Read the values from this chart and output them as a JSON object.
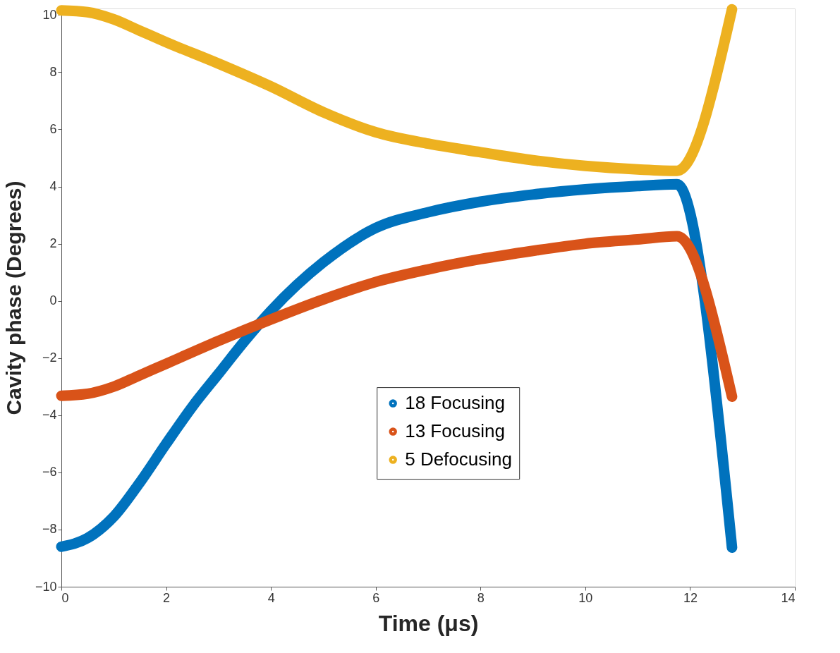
{
  "chart_data": {
    "type": "line",
    "xlabel": "Time (μs)",
    "ylabel": "Cavity phase (Degrees)",
    "xlim": [
      0,
      14
    ],
    "xticks": [
      0,
      2,
      4,
      6,
      8,
      10,
      12,
      14
    ],
    "ylim": [
      -10,
      10.23
    ],
    "yticks": [
      -10,
      -8,
      -6,
      -4,
      -2,
      0,
      2,
      4,
      6,
      8,
      10
    ],
    "grid": false,
    "legend": "bottom",
    "line_style": "solid",
    "series": [
      {
        "name": "18 Focusing",
        "color": "#0072bd",
        "x": [
          0,
          0.5,
          1,
          1.5,
          2,
          2.5,
          3,
          3.5,
          4,
          5,
          6,
          7,
          8,
          9,
          10,
          11,
          11.75,
          12.8
        ],
        "values": [
          -8.6,
          -8.3,
          -7.55,
          -6.35,
          -5.0,
          -3.7,
          -2.55,
          -1.4,
          -0.35,
          1.35,
          2.55,
          3.1,
          3.47,
          3.72,
          3.9,
          4.02,
          4.08,
          -8.63
        ]
      },
      {
        "name": "13 Focusing",
        "color": "#d95319",
        "x": [
          0,
          0.5,
          1,
          1.5,
          2,
          3,
          4,
          5,
          6,
          7,
          8,
          9,
          10,
          11,
          11.75,
          12.8
        ],
        "values": [
          -3.32,
          -3.25,
          -3.0,
          -2.6,
          -2.2,
          -1.4,
          -0.65,
          0.05,
          0.66,
          1.1,
          1.46,
          1.75,
          2.0,
          2.15,
          2.26,
          -3.35
        ]
      },
      {
        "name": "5 Defocusing",
        "color": "#edb120",
        "x": [
          0,
          0.5,
          1,
          1.5,
          2,
          3,
          4,
          5,
          6,
          7,
          8,
          9,
          10,
          11,
          11.75,
          12.8
        ],
        "values": [
          10.16,
          10.1,
          9.85,
          9.45,
          9.05,
          8.3,
          7.5,
          6.6,
          5.9,
          5.5,
          5.2,
          4.92,
          4.72,
          4.6,
          4.55,
          10.2
        ]
      }
    ]
  }
}
